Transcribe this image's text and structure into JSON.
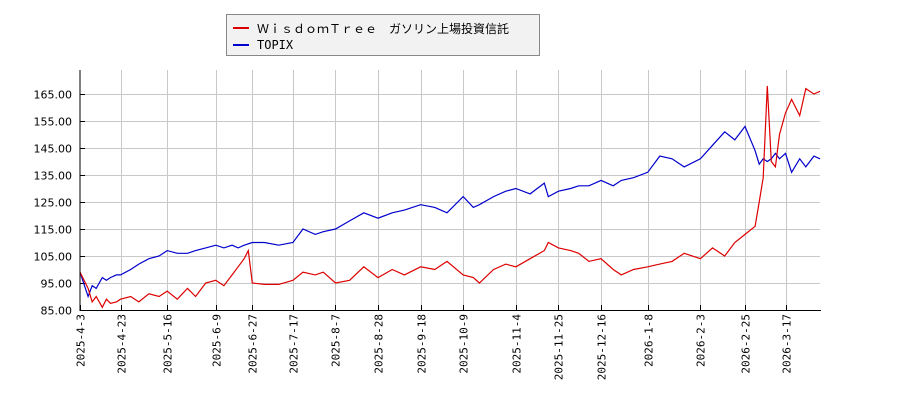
{
  "legend": {
    "items": [
      {
        "label": "ＷｉｓｄｏｍＴｒｅｅ　ガソリン上場投資信託",
        "color": "#dd0000"
      },
      {
        "label": "TOPIX",
        "color": "#0000cc"
      }
    ]
  },
  "chart_data": {
    "type": "line",
    "title": "",
    "xlabel": "",
    "ylabel": "",
    "ylim": [
      85,
      170
    ],
    "yticks": [
      "85.00",
      "95.00",
      "105.00",
      "115.00",
      "125.00",
      "135.00",
      "145.00",
      "155.00",
      "165.00"
    ],
    "xticks": [
      "2025-4-3",
      "2025-4-23",
      "2025-5-16",
      "2025-6-9",
      "2025-6-27",
      "2025-7-17",
      "2025-8-7",
      "2025-8-28",
      "2025-9-18",
      "2025-10-9",
      "2025-11-4",
      "2025-11-25",
      "2025-12-16",
      "2026-1-8",
      "2026-2-3",
      "2026-2-25",
      "2026-3-17"
    ],
    "grid": true,
    "legend_position": "top",
    "series": [
      {
        "name": "ＷｉｓｄｏｍＴｒｅｅ　ガソリン上場投資信託",
        "color": "#dd0000",
        "points": [
          [
            "2025-4-3",
            99
          ],
          [
            "2025-4-7",
            93
          ],
          [
            "2025-4-9",
            88
          ],
          [
            "2025-4-11",
            90
          ],
          [
            "2025-4-14",
            86
          ],
          [
            "2025-4-16",
            89
          ],
          [
            "2025-4-18",
            87.5
          ],
          [
            "2025-4-21",
            88
          ],
          [
            "2025-4-23",
            89
          ],
          [
            "2025-4-28",
            90
          ],
          [
            "2025-5-2",
            88
          ],
          [
            "2025-5-7",
            91
          ],
          [
            "2025-5-12",
            90
          ],
          [
            "2025-5-16",
            92
          ],
          [
            "2025-5-21",
            89
          ],
          [
            "2025-5-26",
            93
          ],
          [
            "2025-5-30",
            90
          ],
          [
            "2025-6-4",
            95
          ],
          [
            "2025-6-9",
            96
          ],
          [
            "2025-6-13",
            94
          ],
          [
            "2025-6-17",
            98
          ],
          [
            "2025-6-20",
            101
          ],
          [
            "2025-6-23",
            104
          ],
          [
            "2025-6-25",
            107
          ],
          [
            "2025-6-27",
            95
          ],
          [
            "2025-7-3",
            94.5
          ],
          [
            "2025-7-10",
            94.5
          ],
          [
            "2025-7-17",
            96
          ],
          [
            "2025-7-22",
            99
          ],
          [
            "2025-7-28",
            98
          ],
          [
            "2025-8-1",
            99
          ],
          [
            "2025-8-7",
            95
          ],
          [
            "2025-8-14",
            96
          ],
          [
            "2025-8-21",
            101
          ],
          [
            "2025-8-28",
            97
          ],
          [
            "2025-9-4",
            100
          ],
          [
            "2025-9-10",
            98
          ],
          [
            "2025-9-18",
            101
          ],
          [
            "2025-9-25",
            100
          ],
          [
            "2025-10-1",
            103
          ],
          [
            "2025-10-9",
            98
          ],
          [
            "2025-10-14",
            97
          ],
          [
            "2025-10-17",
            95
          ],
          [
            "2025-10-24",
            100
          ],
          [
            "2025-10-30",
            102
          ],
          [
            "2025-11-4",
            101
          ],
          [
            "2025-11-11",
            104
          ],
          [
            "2025-11-18",
            107
          ],
          [
            "2025-11-20",
            110
          ],
          [
            "2025-11-25",
            108
          ],
          [
            "2025-12-1",
            107
          ],
          [
            "2025-12-5",
            106
          ],
          [
            "2025-12-10",
            103
          ],
          [
            "2025-12-16",
            104
          ],
          [
            "2025-12-22",
            100
          ],
          [
            "2025-12-26",
            98
          ],
          [
            "2026-1-1",
            100
          ],
          [
            "2026-1-8",
            101
          ],
          [
            "2026-1-14",
            102
          ],
          [
            "2026-1-20",
            103
          ],
          [
            "2026-1-26",
            106
          ],
          [
            "2026-2-3",
            104
          ],
          [
            "2026-2-9",
            108
          ],
          [
            "2026-2-15",
            105
          ],
          [
            "2026-2-20",
            110
          ],
          [
            "2026-2-25",
            113
          ],
          [
            "2026-3-2",
            116
          ],
          [
            "2026-3-4",
            125
          ],
          [
            "2026-3-6",
            134
          ],
          [
            "2026-3-8",
            168
          ],
          [
            "2026-3-10",
            140
          ],
          [
            "2026-3-12",
            138
          ],
          [
            "2026-3-14",
            150
          ],
          [
            "2026-3-17",
            158
          ],
          [
            "2026-3-20",
            163
          ],
          [
            "2026-3-24",
            157
          ],
          [
            "2026-3-27",
            167
          ],
          [
            "2026-3-31",
            165
          ],
          [
            "2026-4-3",
            166
          ]
        ]
      },
      {
        "name": "TOPIX",
        "color": "#0000cc",
        "points": [
          [
            "2025-4-3",
            99
          ],
          [
            "2025-4-7",
            90
          ],
          [
            "2025-4-9",
            94
          ],
          [
            "2025-4-11",
            93
          ],
          [
            "2025-4-14",
            97
          ],
          [
            "2025-4-16",
            96
          ],
          [
            "2025-4-18",
            97
          ],
          [
            "2025-4-21",
            98
          ],
          [
            "2025-4-23",
            98
          ],
          [
            "2025-4-28",
            100
          ],
          [
            "2025-5-2",
            102
          ],
          [
            "2025-5-7",
            104
          ],
          [
            "2025-5-12",
            105
          ],
          [
            "2025-5-16",
            107
          ],
          [
            "2025-5-21",
            106
          ],
          [
            "2025-5-26",
            106
          ],
          [
            "2025-5-30",
            107
          ],
          [
            "2025-6-4",
            108
          ],
          [
            "2025-6-9",
            109
          ],
          [
            "2025-6-13",
            108
          ],
          [
            "2025-6-17",
            109
          ],
          [
            "2025-6-20",
            108
          ],
          [
            "2025-6-23",
            109
          ],
          [
            "2025-6-27",
            110
          ],
          [
            "2025-7-3",
            110
          ],
          [
            "2025-7-10",
            109
          ],
          [
            "2025-7-17",
            110
          ],
          [
            "2025-7-22",
            115
          ],
          [
            "2025-7-28",
            113
          ],
          [
            "2025-8-1",
            114
          ],
          [
            "2025-8-7",
            115
          ],
          [
            "2025-8-14",
            118
          ],
          [
            "2025-8-21",
            121
          ],
          [
            "2025-8-28",
            119
          ],
          [
            "2025-9-4",
            121
          ],
          [
            "2025-9-10",
            122
          ],
          [
            "2025-9-18",
            124
          ],
          [
            "2025-9-25",
            123
          ],
          [
            "2025-10-1",
            121
          ],
          [
            "2025-10-9",
            127
          ],
          [
            "2025-10-14",
            123
          ],
          [
            "2025-10-17",
            124
          ],
          [
            "2025-10-24",
            127
          ],
          [
            "2025-10-30",
            129
          ],
          [
            "2025-11-4",
            130
          ],
          [
            "2025-11-11",
            128
          ],
          [
            "2025-11-18",
            132
          ],
          [
            "2025-11-20",
            127
          ],
          [
            "2025-11-25",
            129
          ],
          [
            "2025-12-1",
            130
          ],
          [
            "2025-12-5",
            131
          ],
          [
            "2025-12-10",
            131
          ],
          [
            "2025-12-16",
            133
          ],
          [
            "2025-12-22",
            131
          ],
          [
            "2025-12-26",
            133
          ],
          [
            "2026-1-1",
            134
          ],
          [
            "2026-1-8",
            136
          ],
          [
            "2026-1-14",
            142
          ],
          [
            "2026-1-20",
            141
          ],
          [
            "2026-1-26",
            138
          ],
          [
            "2026-2-3",
            141
          ],
          [
            "2026-2-9",
            146
          ],
          [
            "2026-2-15",
            151
          ],
          [
            "2026-2-20",
            148
          ],
          [
            "2026-2-25",
            153
          ],
          [
            "2026-3-2",
            144
          ],
          [
            "2026-3-4",
            139
          ],
          [
            "2026-3-6",
            141
          ],
          [
            "2026-3-8",
            140
          ],
          [
            "2026-3-10",
            141
          ],
          [
            "2026-3-12",
            143
          ],
          [
            "2026-3-14",
            141
          ],
          [
            "2026-3-17",
            143
          ],
          [
            "2026-3-20",
            136
          ],
          [
            "2026-3-24",
            141
          ],
          [
            "2026-3-27",
            138
          ],
          [
            "2026-3-31",
            142
          ],
          [
            "2026-4-3",
            141
          ]
        ]
      }
    ]
  }
}
